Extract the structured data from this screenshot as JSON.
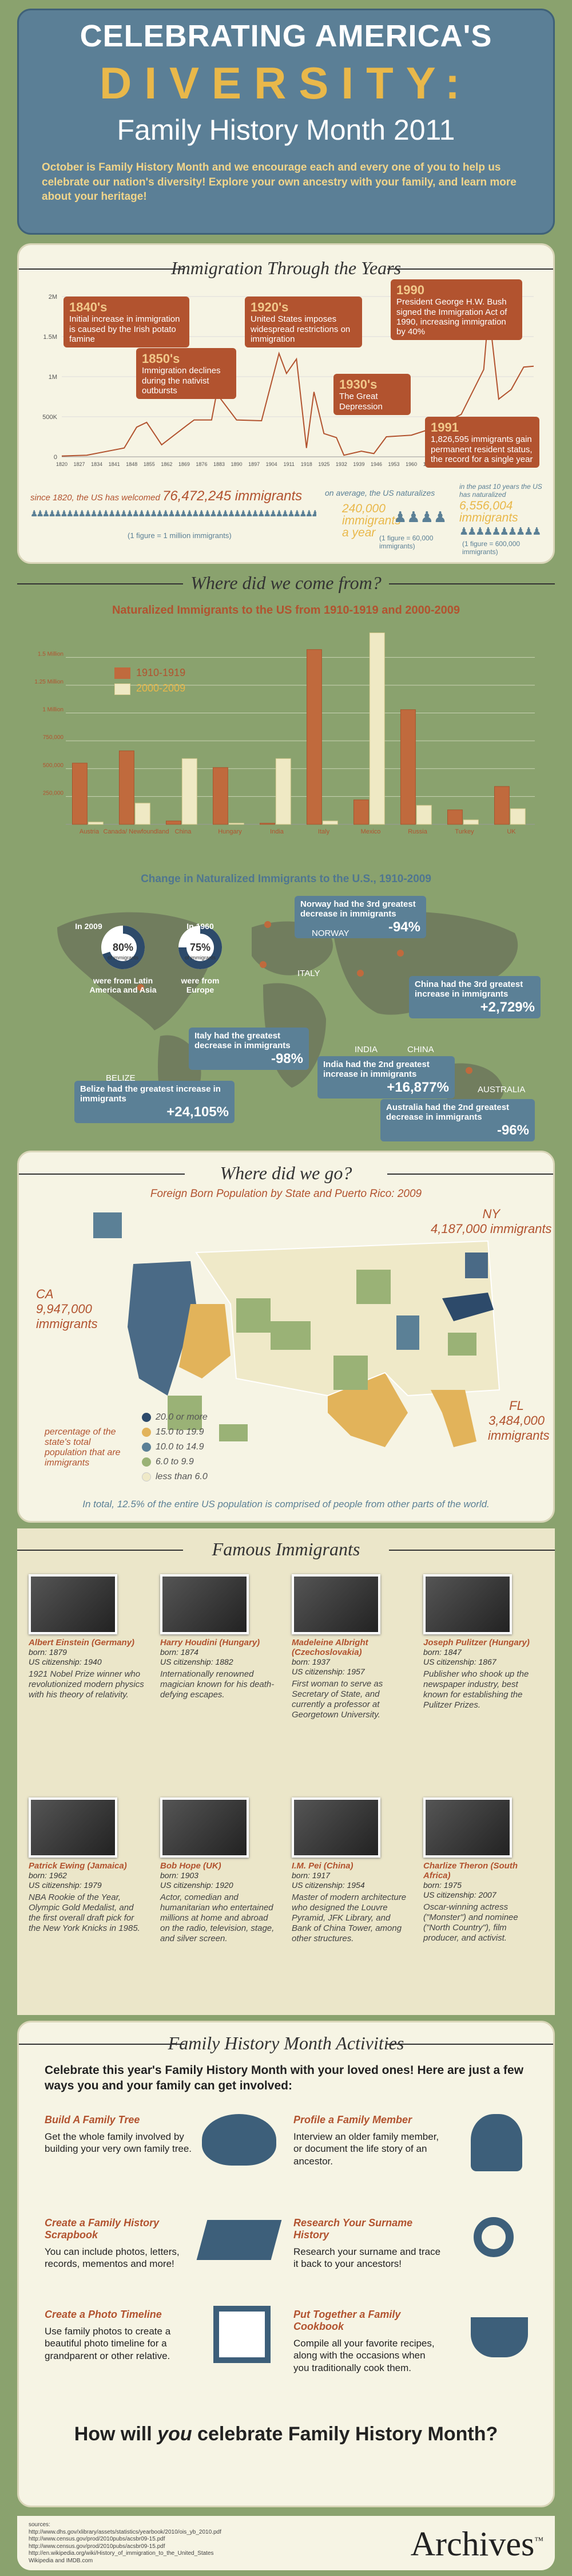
{
  "header": {
    "line1": "CELEBRATING AMERICA'S",
    "line2": "DIVERSITY:",
    "line3": "Family History Month 2011",
    "intro": "October is Family History Month and we encourage each and every one of you to help us celebrate our nation's diversity! Explore your own ancestry with your family, and learn more about your heritage!"
  },
  "colors": {
    "rust": "#b2532f",
    "teal": "#5b8096",
    "gold": "#e9b84a",
    "olive": "#8aa26e",
    "navy": "#2d4a6a",
    "cream": "#f6f4e4"
  },
  "immigration": {
    "title": "Immigration Through the Years",
    "events": [
      {
        "year": "1840's",
        "text": "Initial increase in immigration is caused by the Irish potato famine"
      },
      {
        "year": "1850's",
        "text": "Immigration declines during the nativist outbursts"
      },
      {
        "year": "1920's",
        "text": "United States imposes widespread restrictions on immigration"
      },
      {
        "year": "1930's",
        "text": "The Great Depression"
      },
      {
        "year": "1990",
        "text": "President George H.W. Bush signed the Immigration Act of 1990, increasing immigration by 40%"
      },
      {
        "year": "1991",
        "text": "1,826,595 immigrants gain permanent resident status, the record for a single year"
      }
    ],
    "stat1_pre": "since 1820, the US has welcomed",
    "stat1_num": "76,472,245 immigrants",
    "stat1_note": "(1 figure = 1 million immigrants)",
    "stat2_pre": "on average, the US naturalizes",
    "stat2_num": "240,000 immigrants a year",
    "stat2_note": "(1 figure = 60,000 immigrants)",
    "stat3_pre": "in the past 10 years the US has naturalized",
    "stat3_num": "6,556,004 immigrants",
    "stat3_note": "(1 figure = 600,000 immigrants)"
  },
  "chart_data": [
    {
      "type": "line",
      "title": "Immigration Through the Years",
      "x": [
        1820,
        1830,
        1840,
        1845,
        1850,
        1854,
        1860,
        1870,
        1873,
        1880,
        1882,
        1890,
        1900,
        1907,
        1910,
        1914,
        1918,
        1921,
        1925,
        1930,
        1933,
        1940,
        1945,
        1950,
        1960,
        1970,
        1980,
        1989,
        1991,
        1995,
        2000,
        2005,
        2009
      ],
      "y": [
        0.01,
        0.02,
        0.08,
        0.11,
        0.37,
        0.43,
        0.15,
        0.39,
        0.46,
        0.46,
        0.79,
        0.46,
        0.45,
        1.29,
        1.04,
        1.22,
        0.11,
        0.81,
        0.29,
        0.24,
        0.02,
        0.07,
        0.04,
        0.25,
        0.27,
        0.37,
        0.53,
        1.09,
        1.83,
        0.72,
        0.84,
        1.12,
        1.13
      ],
      "yticks": [
        "0",
        "500K",
        "1M",
        "1.5M",
        "2M"
      ],
      "xticks": [
        "1820",
        "1827",
        "1834",
        "1841",
        "1848",
        "1855",
        "1862",
        "1869",
        "1876",
        "1883",
        "1890",
        "1897",
        "1904",
        "1911",
        "1918",
        "1925",
        "1932",
        "1939",
        "1946",
        "1953",
        "1960",
        "1967",
        "1974",
        "1981",
        "1988",
        "1995",
        "2002",
        "2009"
      ],
      "ylim": [
        0,
        2
      ]
    },
    {
      "type": "bar",
      "title": "Naturalized Immigrants to the US from 1910-1919 and 2000-2009",
      "categories": [
        "Austria",
        "Canada/ Newfoundland",
        "China",
        "Hungary",
        "India",
        "Italy",
        "Mexico",
        "Russia",
        "Turkey",
        "UK"
      ],
      "series": [
        {
          "name": "1910-1919",
          "values": [
            0.55,
            0.66,
            0.03,
            0.51,
            0.01,
            1.57,
            0.22,
            1.03,
            0.13,
            0.34
          ]
        },
        {
          "name": "2000-2009",
          "values": [
            0.02,
            0.19,
            0.59,
            0.01,
            0.59,
            0.03,
            1.72,
            0.17,
            0.04,
            0.14
          ]
        }
      ],
      "yticks": [
        "250,000",
        "500,000",
        "750,000",
        "1 Million",
        "1.25 Million",
        "1.5 Million"
      ],
      "ylim": [
        0,
        1.8
      ]
    }
  ],
  "origin": {
    "title": "Where did we come from?",
    "chart_title": "Naturalized Immigrants to the US from 1910-1919 and 2000-2009",
    "legend1": "1910-1919",
    "legend2": "2000-2009",
    "map_title": "Change in Naturalized Immigrants to the U.S., 1910-2009",
    "pie1_year": "In 2009",
    "pie1_pct": "80%",
    "pie1_sub": "of immigrants",
    "pie1_desc": "were from Latin America and Asia",
    "pie2_year": "In 1960",
    "pie2_pct": "75%",
    "pie2_sub": "of immigrants",
    "pie2_desc": "were from Europe",
    "boxes": [
      {
        "text": "Norway had the 3rd greatest decrease in immigrants",
        "val": "-94%"
      },
      {
        "text": "China had the 3rd greatest increase in immigrants",
        "val": "+2,729%"
      },
      {
        "text": "Italy had the greatest decrease in immigrants",
        "val": "-98%"
      },
      {
        "text": "India had the 2nd greatest increase in immigrants",
        "val": "+16,877%"
      },
      {
        "text": "Belize had the greatest increase in immigrants",
        "val": "+24,105%"
      },
      {
        "text": "Australia had the 2nd greatest decrease in immigrants",
        "val": "-96%"
      }
    ],
    "places": [
      "NORWAY",
      "ITALY",
      "INDIA",
      "CHINA",
      "BELIZE",
      "AUSTRALIA"
    ]
  },
  "where": {
    "title": "Where did we go?",
    "subtitle": "Foreign Born Population by State and Puerto Rico: 2009",
    "ny": "NY",
    "ny_num": "4,187,000 immigrants",
    "ca": "CA",
    "ca_num": "9,947,000 immigrants",
    "fl": "FL",
    "fl_num": "3,484,000 immigrants",
    "legend_note": "percentage of the state's total population that are immigrants",
    "legend": [
      "20.0 or more",
      "15.0 to 19.9",
      "10.0 to 14.9",
      "6.0 to 9.9",
      "less than 6.0"
    ],
    "footer": "In total, 12.5% of the entire US population is comprised of people from other parts of the world."
  },
  "famous": {
    "title": "Famous Immigrants",
    "people": [
      {
        "name": "Albert Einstein (Germany)",
        "born": "born: 1879",
        "cit": "US citizenship: 1940",
        "desc": "1921 Nobel Prize winner who revolutionized modern physics with his theory of relativity."
      },
      {
        "name": "Harry Houdini (Hungary)",
        "born": "born: 1874",
        "cit": "US citizenship: 1882",
        "desc": "Internationally renowned magician known for his death-defying escapes."
      },
      {
        "name": "Madeleine Albright (Czechoslovakia)",
        "born": "born: 1937",
        "cit": "US citizenship: 1957",
        "desc": "First woman to serve as Secretary of State, and currently a professor at Georgetown University."
      },
      {
        "name": "Joseph Pulitzer (Hungary)",
        "born": "born: 1847",
        "cit": "US citizenship: 1867",
        "desc": "Publisher who shook up the newspaper industry, best known for establishing the Pulitzer Prizes."
      },
      {
        "name": "Patrick Ewing (Jamaica)",
        "born": "born: 1962",
        "cit": "US citizenship: 1979",
        "desc": "NBA Rookie of the Year, Olympic Gold Medalist, and the first overall draft pick for the New York Knicks in 1985."
      },
      {
        "name": "Bob Hope (UK)",
        "born": "born: 1903",
        "cit": "US citizenship: 1920",
        "desc": "Actor, comedian and humanitarian who entertained millions at home and abroad on the radio, television, stage, and silver screen."
      },
      {
        "name": "I.M. Pei (China)",
        "born": "born: 1917",
        "cit": "US citizenship: 1954",
        "desc": "Master of modern architecture who designed the Louvre Pyramid, JFK Library, and Bank of China Tower, among other structures."
      },
      {
        "name": "Charlize Theron (South Africa)",
        "born": "born: 1975",
        "cit": "US citizenship: 2007",
        "desc": "Oscar-winning actress (\"Monster\") and nominee (\"North Country\"), film producer, and activist."
      }
    ]
  },
  "activities": {
    "title": "Family History Month Activities",
    "intro": "Celebrate this year's Family History Month with your loved ones! Here are just a few ways you and your family can get involved:",
    "items": [
      {
        "h": "Build A Family Tree",
        "d": "Get the whole family involved by building your very own family tree."
      },
      {
        "h": "Profile a Family Member",
        "d": "Interview an older family member, or document the life story of an ancestor."
      },
      {
        "h": "Create a Family History Scrapbook",
        "d": "You can include photos, letters, records, mementos and more!"
      },
      {
        "h": "Research Your Surname History",
        "d": "Research your surname and trace it back to your ancestors!"
      },
      {
        "h": "Create a Photo Timeline",
        "d": "Use family photos to create a beautiful photo timeline for a grandparent or other relative."
      },
      {
        "h": "Put Together a Family Cookbook",
        "d": "Compile all your favorite recipes, along with the occasions when you traditionally cook them."
      }
    ],
    "closing_pre": "How will ",
    "closing_em": "you",
    "closing_post": " celebrate Family History Month?"
  },
  "footer": {
    "sources_label": "sources:",
    "sources": [
      "http://www.dhs.gov/xlibrary/assets/statistics/yearbook/2010/ois_yb_2010.pdf",
      "http://www.census.gov/prod/2010pubs/acsbr09-15.pdf",
      "http://www.census.gov/prod/2010pubs/acsbr09-15.pdf",
      "http://en.wikipedia.org/wiki/History_of_immigration_to_the_United_States",
      "Wikipedia and IMDB.com"
    ],
    "logo": "Archives",
    "tm": "™"
  }
}
